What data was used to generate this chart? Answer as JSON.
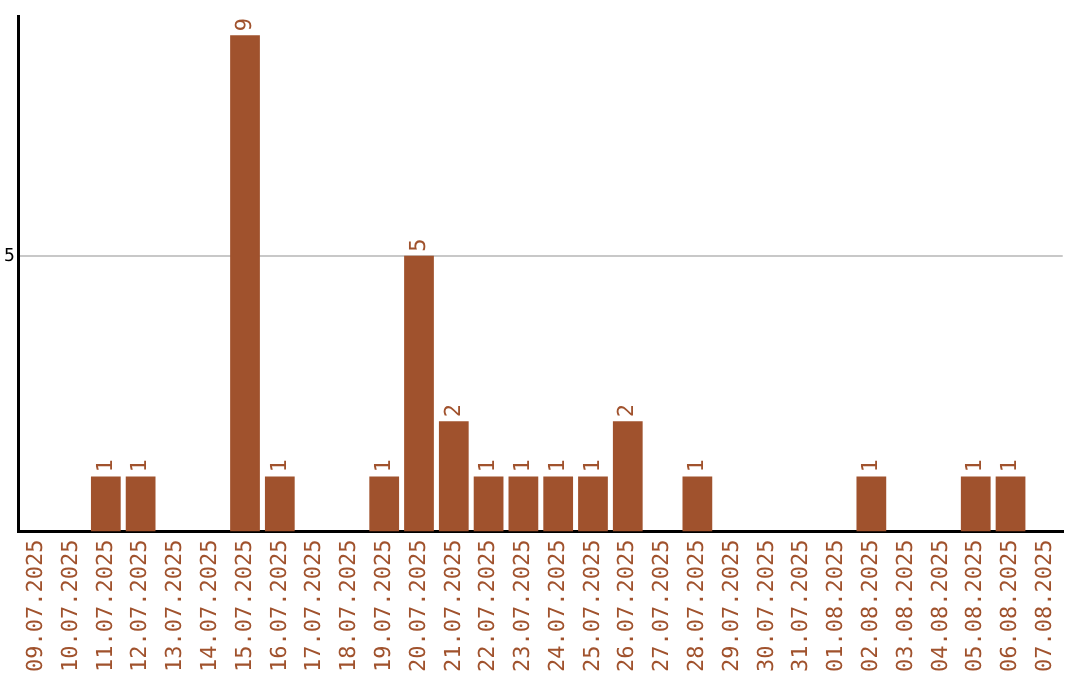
{
  "chart_data": {
    "type": "bar",
    "categories": [
      "09.07.2025",
      "10.07.2025",
      "11.07.2025",
      "12.07.2025",
      "13.07.2025",
      "14.07.2025",
      "15.07.2025",
      "16.07.2025",
      "17.07.2025",
      "18.07.2025",
      "19.07.2025",
      "20.07.2025",
      "21.07.2025",
      "22.07.2025",
      "23.07.2025",
      "24.07.2025",
      "25.07.2025",
      "26.07.2025",
      "27.07.2025",
      "28.07.2025",
      "29.07.2025",
      "30.07.2025",
      "31.07.2025",
      "01.08.2025",
      "02.08.2025",
      "03.08.2025",
      "04.08.2025",
      "05.08.2025",
      "06.08.2025",
      "07.08.2025"
    ],
    "values": [
      0,
      0,
      1,
      1,
      0,
      0,
      9,
      1,
      0,
      0,
      1,
      5,
      2,
      1,
      1,
      1,
      1,
      2,
      0,
      1,
      0,
      0,
      0,
      0,
      1,
      0,
      0,
      1,
      1,
      0
    ],
    "value_labels": [
      null,
      null,
      "1",
      "1",
      null,
      null,
      "9",
      "1",
      null,
      null,
      "1",
      "5",
      "2",
      "1",
      "1",
      "1",
      "1",
      "2",
      null,
      "1",
      null,
      null,
      null,
      null,
      "1",
      null,
      null,
      "1",
      "1",
      null
    ],
    "color": "#a0522d",
    "ylim": [
      0,
      9.35
    ],
    "yticks": [
      5
    ],
    "grid": "y",
    "legend": false
  }
}
